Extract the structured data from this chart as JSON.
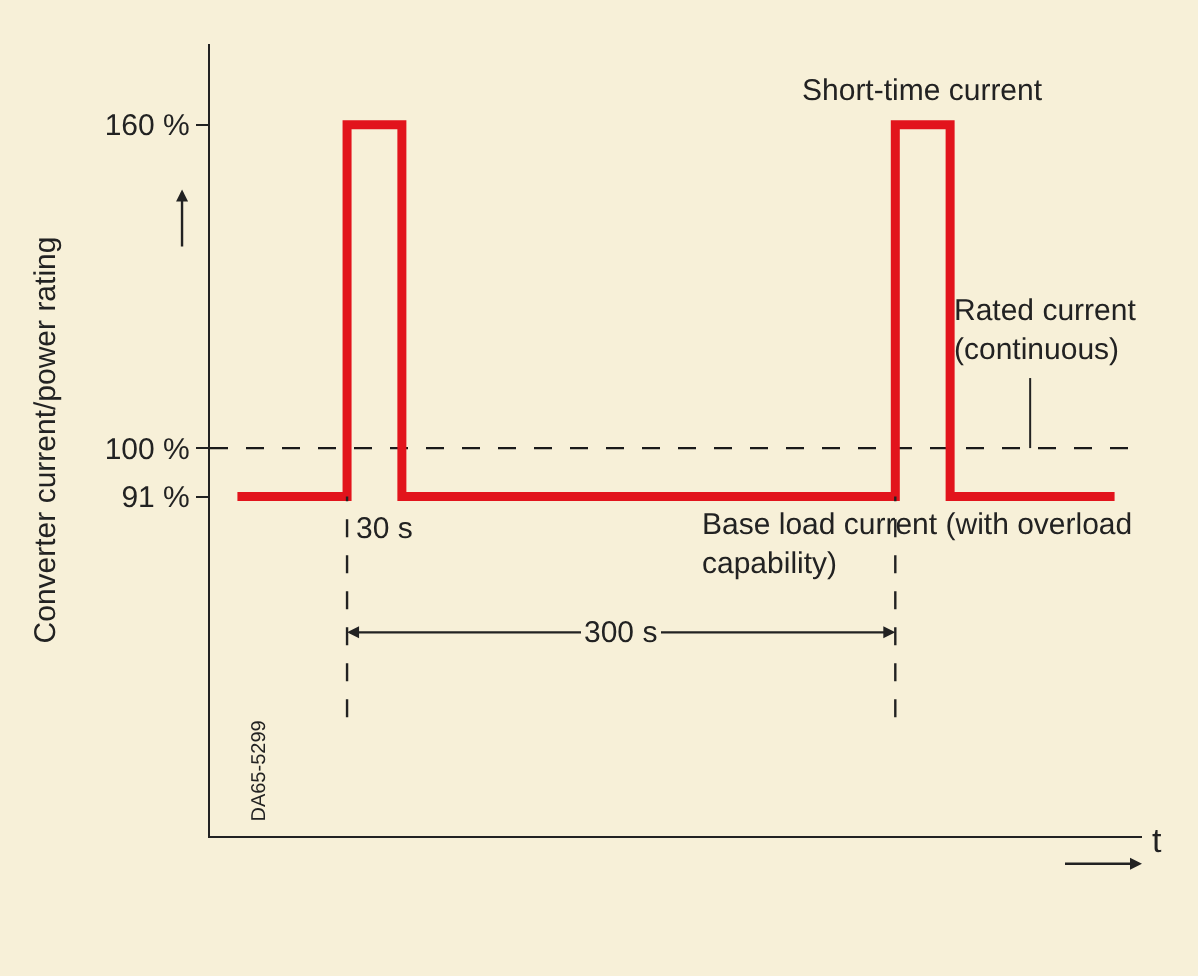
{
  "chart_data": {
    "type": "step",
    "ylabel": "Converter current/power rating",
    "xlabel": "t",
    "categories": [
      null,
      null,
      null,
      null,
      null,
      null,
      null,
      null,
      null,
      null,
      null,
      null,
      null,
      null,
      null,
      null,
      null
    ],
    "series": [
      {
        "color": "#e2141c",
        "values": [
          91,
          91,
          160,
          91,
          91,
          91,
          91,
          91,
          91,
          91,
          91,
          91,
          160,
          91,
          91,
          91,
          91
        ]
      }
    ],
    "ylim": [
      28,
      175
    ],
    "yticks": [
      {
        "value": 160,
        "label": "160 %"
      },
      {
        "value": 100,
        "label": "100 %"
      },
      {
        "value": 91,
        "label": "91 %"
      }
    ],
    "tick_labels": "y",
    "grid": false,
    "legend": false,
    "marker": "none",
    "ref_lines": [
      {
        "axis": "y",
        "value": 100,
        "label": "Rated current (continuous)",
        "line_style": "dashed",
        "color": "#1a1a1a"
      }
    ],
    "annotations": [
      "Short-time current",
      "30 s",
      "Base load current (with overload capability)",
      "300 s",
      "DA65-5299"
    ]
  }
}
